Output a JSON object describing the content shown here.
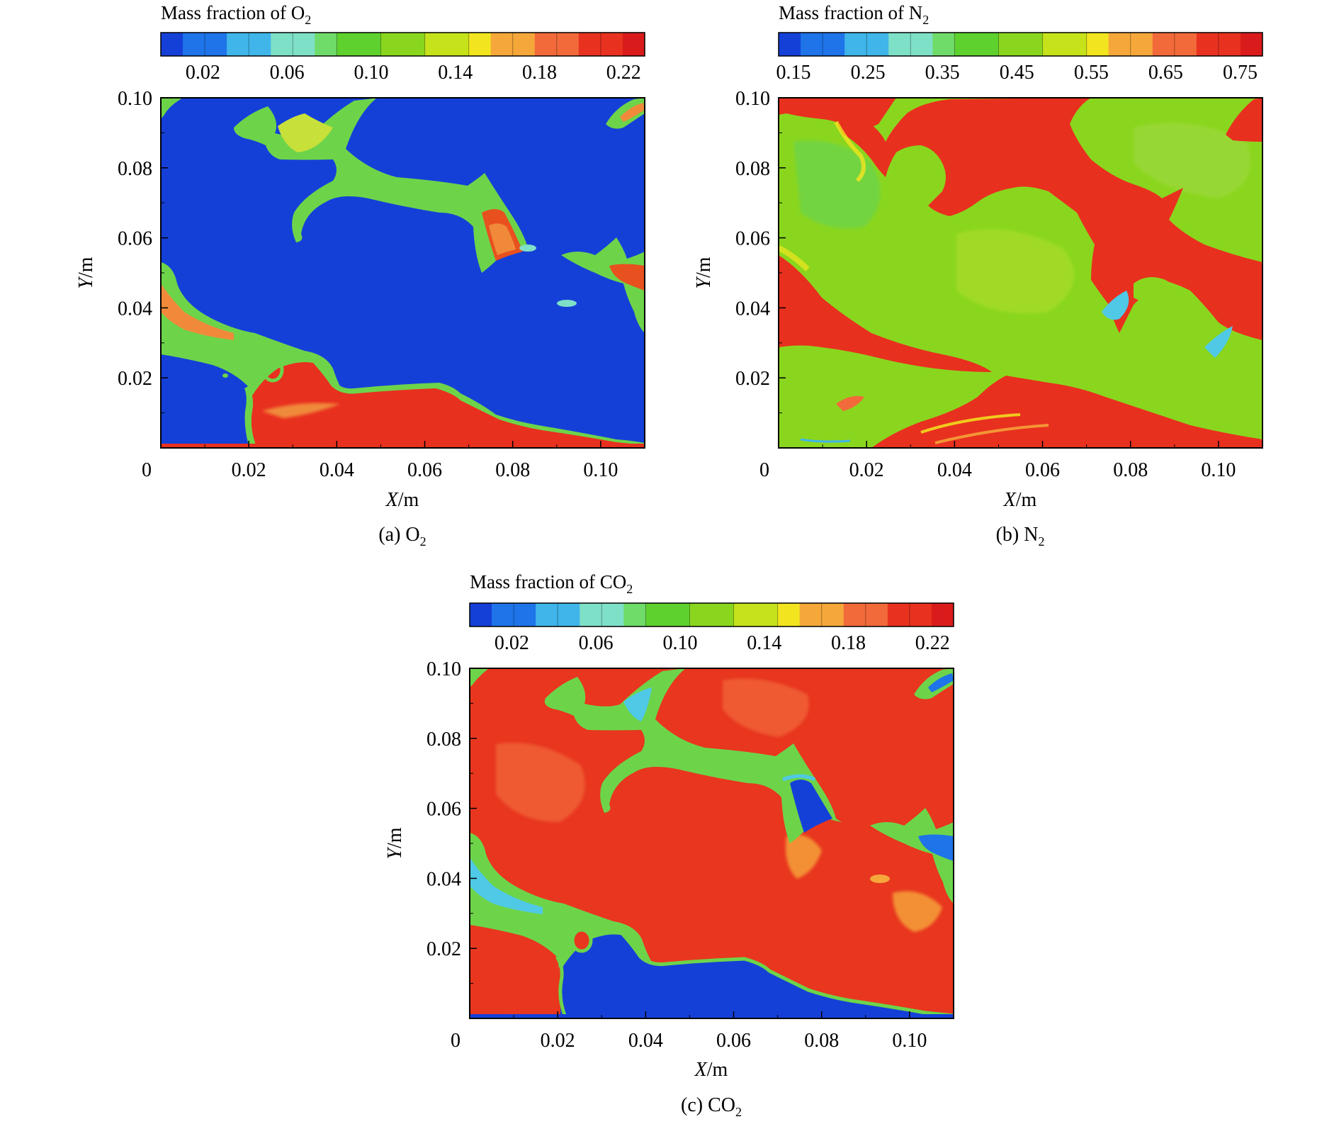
{
  "chart_data": [
    {
      "type": "heatmap",
      "panel_label": "(a) O",
      "panel_sub": "2",
      "colorbar_title": "Mass fraction of O",
      "colorbar_sub": "2",
      "colorbar_ticks": [
        "0.02",
        "0.06",
        "0.10",
        "0.14",
        "0.18",
        "0.22"
      ],
      "colorbar_range": [
        0.0,
        0.23
      ],
      "xlabel_italic": "X",
      "xlabel_unit": "/m",
      "ylabel_italic": "Y",
      "ylabel_unit": "/m",
      "x_ticks": [
        "0",
        "0.02",
        "0.04",
        "0.06",
        "0.08",
        "0.10"
      ],
      "y_ticks": [
        "0.02",
        "0.04",
        "0.06",
        "0.08",
        "0.10"
      ],
      "xlim": [
        0,
        0.11
      ],
      "ylim": [
        0,
        0.1
      ],
      "background": "low",
      "field": "o2"
    },
    {
      "type": "heatmap",
      "panel_label": "(b) N",
      "panel_sub": "2",
      "colorbar_title": "Mass fraction of N",
      "colorbar_sub": "2",
      "colorbar_ticks": [
        "0.15",
        "0.25",
        "0.35",
        "0.45",
        "0.55",
        "0.65",
        "0.75"
      ],
      "colorbar_range": [
        0.13,
        0.78
      ],
      "xlabel_italic": "X",
      "xlabel_unit": "/m",
      "ylabel_italic": "Y",
      "ylabel_unit": "/m",
      "x_ticks": [
        "0",
        "0.02",
        "0.04",
        "0.06",
        "0.08",
        "0.10"
      ],
      "y_ticks": [
        "0.02",
        "0.04",
        "0.06",
        "0.08",
        "0.10"
      ],
      "xlim": [
        0,
        0.11
      ],
      "ylim": [
        0,
        0.1
      ],
      "background": "mid",
      "field": "n2"
    },
    {
      "type": "heatmap",
      "panel_label": "(c) CO",
      "panel_sub": "2",
      "colorbar_title": "Mass fraction of CO",
      "colorbar_sub": "2",
      "colorbar_ticks": [
        "0.02",
        "0.06",
        "0.10",
        "0.14",
        "0.18",
        "0.22"
      ],
      "colorbar_range": [
        0.0,
        0.23
      ],
      "xlabel_italic": "X",
      "xlabel_unit": "/m",
      "ylabel_italic": "Y",
      "ylabel_unit": "/m",
      "x_ticks": [
        "0",
        "0.02",
        "0.04",
        "0.06",
        "0.08",
        "0.10"
      ],
      "y_ticks": [
        "0.02",
        "0.04",
        "0.06",
        "0.08",
        "0.10"
      ],
      "xlim": [
        0,
        0.11
      ],
      "ylim": [
        0,
        0.1
      ],
      "background": "high",
      "field": "co2"
    }
  ],
  "colormap": [
    "#1540d8",
    "#1e74e8",
    "#3fb5ea",
    "#7fe0c8",
    "#6fdc6a",
    "#5fd12e",
    "#8ad61e",
    "#c5e21a",
    "#f2e51f",
    "#f6a73a",
    "#f26a3a",
    "#e8321f",
    "#d91b1b"
  ],
  "colors": {
    "low": "#1540d8",
    "cyan": "#4fc9e6",
    "green": "#6dd44a",
    "lightgreen": "#9be03a",
    "yellowgreen": "#c8e03a",
    "orange": "#f08a3a",
    "red": "#e8301f",
    "deepred": "#d91b1b"
  }
}
